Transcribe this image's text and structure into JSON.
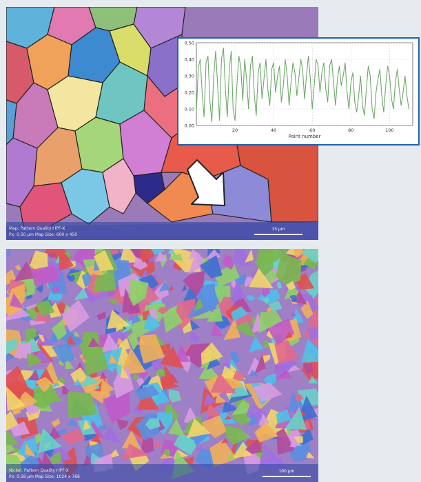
{
  "top_panel": {
    "caption_line1": "Map: Pattern Quality+IPF-X",
    "caption_line2": "Px: 0.50 µm Map Size: 600 x 450",
    "scale_label": "15 µm"
  },
  "bottom_panel": {
    "caption_line1": "Nickel: Pattern Quality+IPF-X",
    "caption_line2": "Px: 0.58 µm Map Size: 1024 x 768",
    "scale_label": "100 µm"
  },
  "chart_data": {
    "type": "line",
    "title": "",
    "xlabel": "Point number",
    "ylabel": "",
    "xlim": [
      0,
      112
    ],
    "ylim": [
      0,
      0.5
    ],
    "y_ticks": [
      "0.00",
      "0.10",
      "0.20",
      "0.30",
      "0.40",
      "0.50"
    ],
    "x_ticks": [
      "20",
      "40",
      "60",
      "80",
      "100"
    ],
    "grid": true,
    "line_color": "#6fa86a",
    "series": [
      {
        "x": [
          0,
          1,
          2,
          3,
          4,
          5,
          6,
          7,
          8,
          9,
          10,
          11,
          12,
          13,
          14,
          15,
          16,
          17,
          18,
          19,
          20,
          21,
          22,
          23,
          24,
          25,
          26,
          27,
          28,
          29,
          30,
          31,
          32,
          33,
          34,
          35,
          36,
          37,
          38,
          39,
          40,
          41,
          42,
          43,
          44,
          45,
          46,
          47,
          48,
          49,
          50,
          51,
          52,
          53,
          54,
          55,
          56,
          57,
          58,
          59,
          60,
          61,
          62,
          63,
          64,
          65,
          66,
          67,
          68,
          69,
          70,
          71,
          72,
          73,
          74,
          75,
          76,
          77,
          78,
          79,
          80,
          81,
          82,
          83,
          84,
          85,
          86,
          87,
          88,
          89,
          90,
          91,
          92,
          93,
          94,
          95,
          96,
          97,
          98,
          99,
          100,
          101,
          102,
          103,
          104,
          105,
          106,
          107,
          108,
          109,
          110
        ],
        "y": [
          0.08,
          0.35,
          0.4,
          0.2,
          0.05,
          0.38,
          0.42,
          0.15,
          0.02,
          0.3,
          0.45,
          0.25,
          0.03,
          0.4,
          0.47,
          0.22,
          0.05,
          0.33,
          0.45,
          0.1,
          0.03,
          0.25,
          0.42,
          0.35,
          0.15,
          0.4,
          0.28,
          0.1,
          0.36,
          0.42,
          0.18,
          0.06,
          0.32,
          0.38,
          0.16,
          0.28,
          0.4,
          0.22,
          0.12,
          0.34,
          0.38,
          0.2,
          0.3,
          0.36,
          0.14,
          0.24,
          0.4,
          0.3,
          0.12,
          0.26,
          0.38,
          0.32,
          0.18,
          0.28,
          0.4,
          0.34,
          0.16,
          0.3,
          0.42,
          0.28,
          0.1,
          0.24,
          0.4,
          0.36,
          0.2,
          0.32,
          0.38,
          0.22,
          0.14,
          0.36,
          0.4,
          0.26,
          0.12,
          0.28,
          0.36,
          0.24,
          0.3,
          0.38,
          0.2,
          0.1,
          0.26,
          0.32,
          0.14,
          0.08,
          0.18,
          0.3,
          0.12,
          0.06,
          0.22,
          0.36,
          0.3,
          0.1,
          0.04,
          0.2,
          0.28,
          0.34,
          0.18,
          0.08,
          0.24,
          0.36,
          0.3,
          0.16,
          0.1,
          0.26,
          0.34,
          0.22,
          0.12,
          0.2,
          0.3,
          0.18,
          0.1
        ]
      }
    ]
  }
}
